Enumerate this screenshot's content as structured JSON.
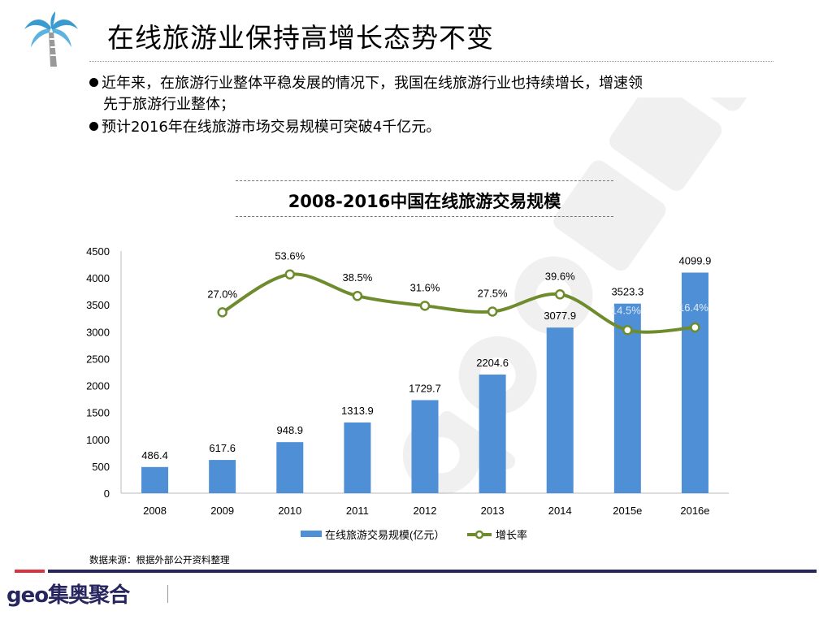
{
  "slide": {
    "title": "在线旅游业保持高增长态势不变",
    "bullets": [
      "近年来，在旅游行业整体平稳发展的情况下，我国在线旅游行业也持续增长，增速领",
      "先于旅游行业整体；",
      "预计2016年在线旅游市场交易规模可突破4千亿元。"
    ],
    "source": "数据来源：根据外部公开资料整理",
    "logo": "geo集奥聚合",
    "watermark": "geo集奥聚合",
    "icon": "palm-tree-icon",
    "colors": {
      "bar": "#4f8fd6",
      "line": "#6e8c2d",
      "accent_red": "#d9343f",
      "accent_navy": "#27265f"
    }
  },
  "chart_data": {
    "type": "bar+line",
    "title": "2008-2016中国在线旅游交易规模",
    "categories": [
      "2008",
      "2009",
      "2010",
      "2011",
      "2012",
      "2013",
      "2014",
      "2015e",
      "2016e"
    ],
    "series": [
      {
        "name": "在线旅游交易规模(亿元）",
        "type": "bar",
        "values": [
          486.4,
          617.6,
          948.9,
          1313.9,
          1729.7,
          2204.6,
          3077.9,
          3523.3,
          4099.9
        ],
        "labels": [
          "486.4",
          "617.6",
          "948.9",
          "1313.9",
          "1729.7",
          "2204.6",
          "3077.9",
          "3523.3",
          "4099.9"
        ]
      },
      {
        "name": "增长率",
        "type": "line",
        "axis": "secondary",
        "values": [
          null,
          27.0,
          53.6,
          38.5,
          31.6,
          27.5,
          39.6,
          14.5,
          16.4
        ],
        "labels": [
          "",
          "27.0%",
          "53.6%",
          "38.5%",
          "31.6%",
          "27.5%",
          "39.6%",
          "14.5%",
          "16.4%"
        ]
      }
    ],
    "ylim": [
      0,
      4500
    ],
    "yticks": [
      "0",
      "500",
      "1000",
      "1500",
      "2000",
      "2500",
      "3000",
      "3500",
      "4000",
      "4500"
    ],
    "y2lim": [
      -100,
      70
    ],
    "grid": false,
    "legend": "bottom"
  }
}
